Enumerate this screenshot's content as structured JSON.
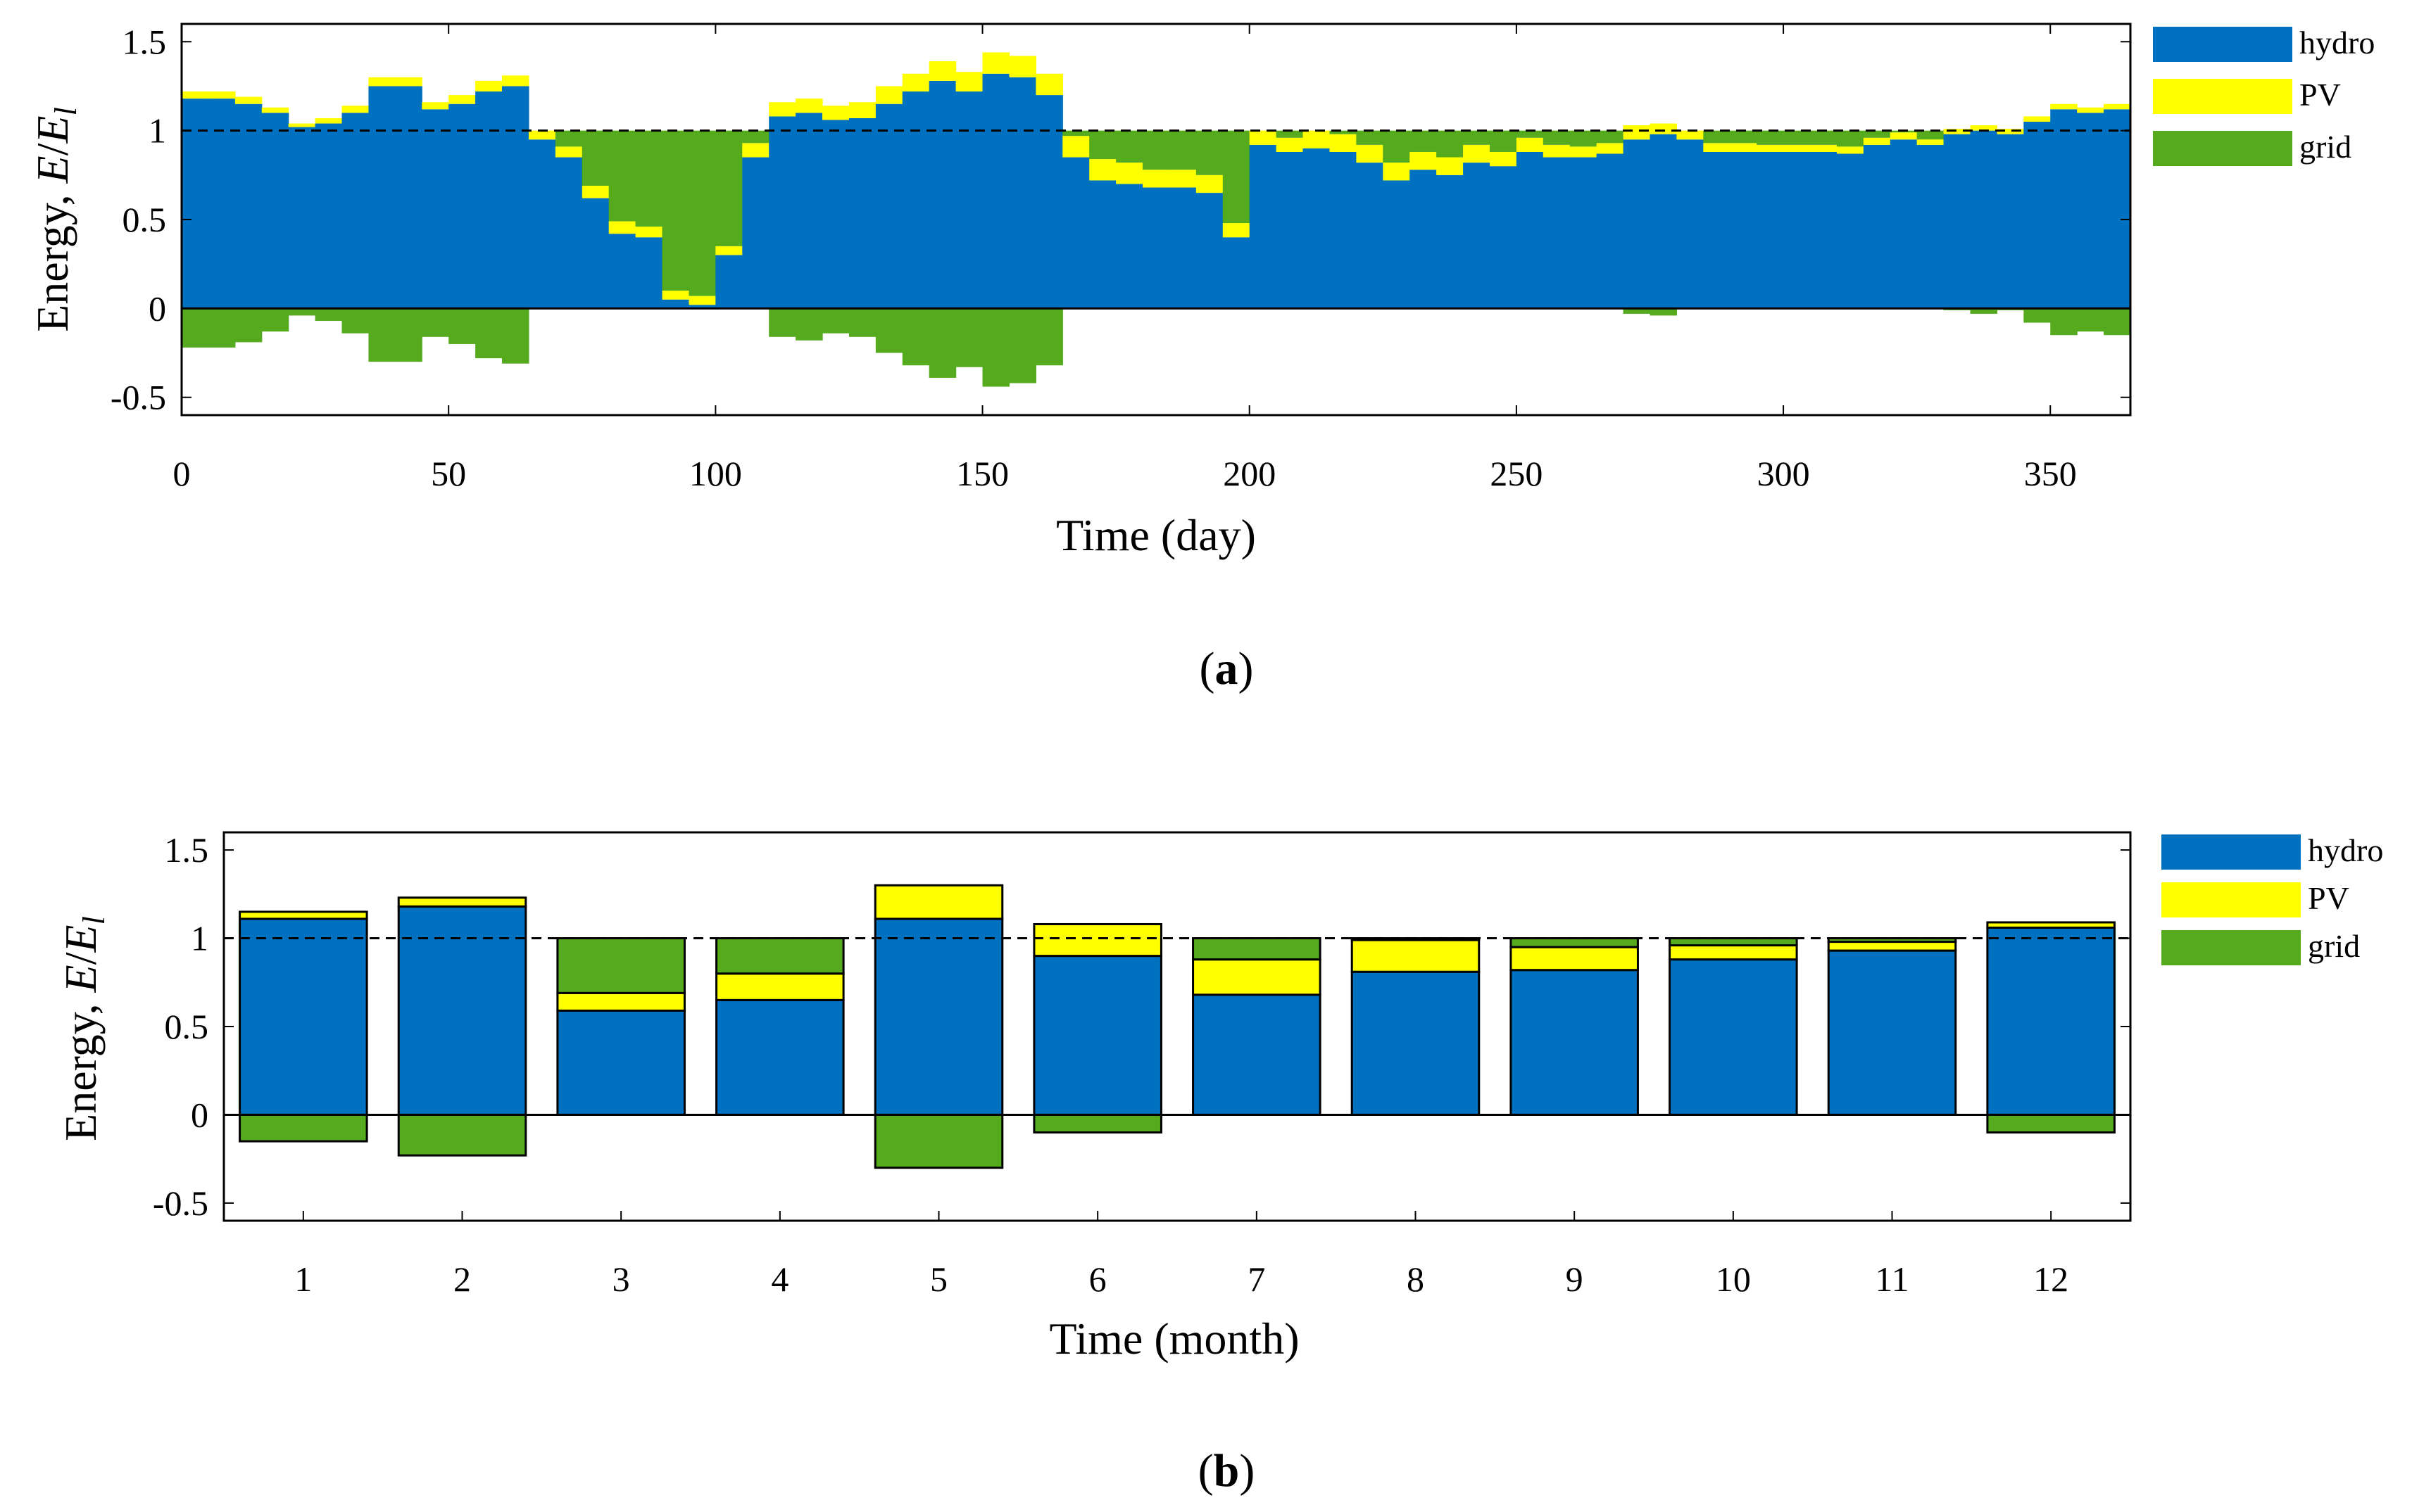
{
  "figure": {
    "caption_a": {
      "open": "(",
      "letter": "a",
      "close": ")"
    },
    "caption_b": {
      "open": "(",
      "letter": "b",
      "close": ")"
    }
  },
  "legend": {
    "hydro": "hydro",
    "pv": "PV",
    "grid": "grid"
  },
  "colors": {
    "hydro": "#0070c0",
    "pv": "#ffff00",
    "grid": "#55aa1e",
    "axis": "#000000",
    "reference_line": "#000000"
  },
  "chart_data": [
    {
      "id": "a",
      "type": "area",
      "title": "",
      "xlabel": "Time (day)",
      "ylabel_prefix": "Energy, ",
      "ylabel_italic": "E",
      "ylabel_sep": "/",
      "ylabel_italic2": "E",
      "ylabel_sub": "l",
      "xlim": [
        0,
        365
      ],
      "ylim": [
        -0.6,
        1.6
      ],
      "xticks": [
        0,
        50,
        100,
        150,
        200,
        250,
        300,
        350
      ],
      "yticks": [
        -0.5,
        0,
        0.5,
        1,
        1.5
      ],
      "ytick_labels": [
        "-0.5",
        "0",
        "0.5",
        "1",
        "1.5"
      ],
      "reference_line": 1,
      "legend_position": "outside-right",
      "series_definition": "Stacked daily energy shares, sampled every 5 days: hydro (positive), PV (stacked on hydro), grid import fills the deficit up to 1, and the surplus export is shown as negative grid.",
      "x": [
        0,
        5,
        10,
        15,
        20,
        25,
        30,
        35,
        40,
        45,
        50,
        55,
        60,
        65,
        70,
        75,
        80,
        85,
        90,
        95,
        100,
        105,
        110,
        115,
        120,
        125,
        130,
        135,
        140,
        145,
        150,
        155,
        160,
        165,
        170,
        175,
        180,
        185,
        190,
        195,
        200,
        205,
        210,
        215,
        220,
        225,
        230,
        235,
        240,
        245,
        250,
        255,
        260,
        265,
        270,
        275,
        280,
        285,
        290,
        295,
        300,
        305,
        310,
        315,
        320,
        325,
        330,
        335,
        340,
        345,
        350,
        355,
        360,
        365
      ],
      "series": [
        {
          "name": "hydro",
          "values": [
            1.18,
            1.18,
            1.15,
            1.1,
            1.02,
            1.04,
            1.1,
            1.25,
            1.25,
            1.12,
            1.15,
            1.22,
            1.25,
            0.95,
            0.85,
            0.62,
            0.42,
            0.4,
            0.05,
            0.02,
            0.3,
            0.85,
            1.08,
            1.1,
            1.06,
            1.07,
            1.15,
            1.22,
            1.28,
            1.22,
            1.32,
            1.3,
            1.2,
            0.85,
            0.72,
            0.7,
            0.68,
            0.68,
            0.65,
            0.4,
            0.92,
            0.88,
            0.9,
            0.88,
            0.82,
            0.72,
            0.78,
            0.75,
            0.82,
            0.8,
            0.88,
            0.85,
            0.85,
            0.87,
            0.95,
            0.98,
            0.95,
            0.88,
            0.88,
            0.88,
            0.88,
            0.88,
            0.87,
            0.92,
            0.95,
            0.92,
            0.98,
            1.0,
            0.98,
            1.05,
            1.12,
            1.1,
            1.12,
            1.18
          ]
        },
        {
          "name": "PV",
          "values": [
            0.04,
            0.04,
            0.04,
            0.03,
            0.02,
            0.03,
            0.04,
            0.05,
            0.05,
            0.04,
            0.05,
            0.06,
            0.06,
            0.05,
            0.06,
            0.07,
            0.07,
            0.06,
            0.05,
            0.05,
            0.05,
            0.08,
            0.08,
            0.08,
            0.08,
            0.09,
            0.1,
            0.1,
            0.11,
            0.11,
            0.12,
            0.12,
            0.12,
            0.12,
            0.12,
            0.12,
            0.1,
            0.1,
            0.1,
            0.08,
            0.08,
            0.08,
            0.1,
            0.1,
            0.1,
            0.1,
            0.1,
            0.1,
            0.1,
            0.08,
            0.08,
            0.07,
            0.06,
            0.06,
            0.08,
            0.06,
            0.05,
            0.05,
            0.05,
            0.04,
            0.04,
            0.04,
            0.04,
            0.04,
            0.04,
            0.03,
            0.03,
            0.03,
            0.03,
            0.03,
            0.03,
            0.03,
            0.03,
            0.04
          ]
        },
        {
          "name": "grid",
          "values": [
            -0.22,
            -0.22,
            -0.19,
            -0.13,
            -0.04,
            -0.07,
            -0.14,
            -0.3,
            -0.3,
            -0.16,
            -0.2,
            -0.28,
            -0.31,
            0.0,
            0.09,
            0.31,
            0.51,
            0.54,
            0.9,
            0.93,
            0.65,
            0.07,
            -0.16,
            -0.18,
            -0.14,
            -0.16,
            -0.25,
            -0.32,
            -0.39,
            -0.33,
            -0.44,
            -0.42,
            -0.32,
            0.03,
            0.16,
            0.18,
            0.22,
            0.22,
            0.25,
            0.52,
            0.0,
            0.04,
            0.0,
            0.02,
            0.08,
            0.18,
            0.12,
            0.15,
            0.08,
            0.12,
            0.04,
            0.08,
            0.09,
            0.07,
            -0.03,
            -0.04,
            0.0,
            0.07,
            0.07,
            0.08,
            0.08,
            0.08,
            0.09,
            0.04,
            0.01,
            0.05,
            -0.01,
            -0.03,
            -0.01,
            -0.08,
            -0.15,
            -0.13,
            -0.15,
            -0.22
          ]
        }
      ]
    },
    {
      "id": "b",
      "type": "bar",
      "stacked": true,
      "title": "",
      "xlabel": "Time (month)",
      "ylabel_prefix": "Energy, ",
      "ylabel_italic": "E",
      "ylabel_sep": "/",
      "ylabel_italic2": "E",
      "ylabel_sub": "l",
      "xlim": [
        0.5,
        12.5
      ],
      "ylim": [
        -0.6,
        1.6
      ],
      "yticks": [
        -0.5,
        0,
        0.5,
        1,
        1.5
      ],
      "ytick_labels": [
        "-0.5",
        "0",
        "0.5",
        "1",
        "1.5"
      ],
      "reference_line": 1,
      "legend_position": "outside-right",
      "categories": [
        "1",
        "2",
        "3",
        "4",
        "5",
        "6",
        "7",
        "8",
        "9",
        "10",
        "11",
        "12"
      ],
      "series": [
        {
          "name": "hydro",
          "values": [
            1.11,
            1.18,
            0.59,
            0.65,
            1.11,
            0.9,
            0.68,
            0.81,
            0.82,
            0.88,
            0.93,
            1.06
          ]
        },
        {
          "name": "PV",
          "values": [
            0.04,
            0.05,
            0.1,
            0.15,
            0.19,
            0.18,
            0.2,
            0.18,
            0.13,
            0.08,
            0.05,
            0.03
          ]
        },
        {
          "name": "grid",
          "values": [
            -0.15,
            -0.23,
            0.31,
            0.2,
            -0.3,
            -0.1,
            0.12,
            0.01,
            0.05,
            0.04,
            0.02,
            -0.1
          ]
        }
      ]
    }
  ]
}
